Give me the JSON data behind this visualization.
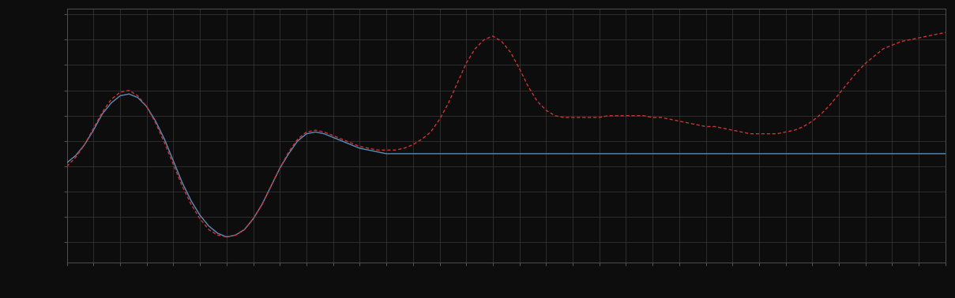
{
  "background_color": "#0d0d0d",
  "plot_bg_color": "#0d0d0d",
  "grid_color": "#3a3a3a",
  "line1_color": "#5b8db8",
  "line2_color": "#cc3333",
  "figsize": [
    12.09,
    3.78
  ],
  "dpi": 100,
  "x": [
    0,
    1,
    2,
    3,
    4,
    5,
    6,
    7,
    8,
    9,
    10,
    11,
    12,
    13,
    14,
    15,
    16,
    17,
    18,
    19,
    20,
    21,
    22,
    23,
    24,
    25,
    26,
    27,
    28,
    29,
    30,
    31,
    32,
    33,
    34,
    35,
    36,
    37,
    38,
    39,
    40,
    41,
    42,
    43,
    44,
    45,
    46,
    47,
    48,
    49,
    50,
    51,
    52,
    53,
    54,
    55,
    56,
    57,
    58,
    59,
    60,
    61,
    62,
    63,
    64,
    65,
    66,
    67,
    68,
    69,
    70,
    71,
    72,
    73,
    74,
    75,
    76,
    77,
    78,
    79,
    80,
    81,
    82,
    83,
    84,
    85,
    86,
    87,
    88,
    89,
    90,
    91,
    92,
    93,
    94,
    95,
    96,
    97,
    98,
    99
  ],
  "y_blue": [
    0.3,
    0.34,
    0.4,
    0.48,
    0.57,
    0.63,
    0.67,
    0.68,
    0.66,
    0.61,
    0.53,
    0.43,
    0.31,
    0.19,
    0.09,
    0.01,
    -0.05,
    -0.09,
    -0.11,
    -0.1,
    -0.07,
    -0.01,
    0.07,
    0.17,
    0.27,
    0.35,
    0.42,
    0.46,
    0.47,
    0.46,
    0.44,
    0.42,
    0.4,
    0.38,
    0.37,
    0.36,
    0.35,
    0.35,
    0.35,
    0.35,
    0.35,
    0.35,
    0.35,
    0.35,
    0.35,
    0.35,
    0.35,
    0.35,
    0.35,
    0.35,
    0.35,
    0.35,
    0.35,
    0.35,
    0.35,
    0.35,
    0.35,
    0.35,
    0.35,
    0.35,
    0.35,
    0.35,
    0.35,
    0.35,
    0.35,
    0.35,
    0.35,
    0.35,
    0.35,
    0.35,
    0.35,
    0.35,
    0.35,
    0.35,
    0.35,
    0.35,
    0.35,
    0.35,
    0.35,
    0.35,
    0.35,
    0.35,
    0.35,
    0.35,
    0.35,
    0.35,
    0.35,
    0.35,
    0.35,
    0.35,
    0.35,
    0.35,
    0.35,
    0.35,
    0.35,
    0.35,
    0.35,
    0.35,
    0.35,
    0.35
  ],
  "y_red": [
    0.28,
    0.33,
    0.4,
    0.49,
    0.58,
    0.65,
    0.69,
    0.7,
    0.67,
    0.61,
    0.52,
    0.41,
    0.29,
    0.17,
    0.07,
    -0.01,
    -0.07,
    -0.1,
    -0.11,
    -0.1,
    -0.07,
    -0.01,
    0.07,
    0.17,
    0.27,
    0.36,
    0.43,
    0.47,
    0.48,
    0.47,
    0.45,
    0.43,
    0.41,
    0.39,
    0.38,
    0.37,
    0.37,
    0.37,
    0.38,
    0.4,
    0.43,
    0.47,
    0.54,
    0.63,
    0.74,
    0.85,
    0.93,
    0.98,
    1.0,
    0.97,
    0.91,
    0.82,
    0.72,
    0.64,
    0.59,
    0.56,
    0.55,
    0.55,
    0.55,
    0.55,
    0.55,
    0.56,
    0.56,
    0.56,
    0.56,
    0.56,
    0.55,
    0.55,
    0.54,
    0.53,
    0.52,
    0.51,
    0.5,
    0.5,
    0.49,
    0.48,
    0.47,
    0.46,
    0.46,
    0.46,
    0.46,
    0.47,
    0.48,
    0.5,
    0.53,
    0.57,
    0.62,
    0.68,
    0.74,
    0.8,
    0.85,
    0.89,
    0.93,
    0.95,
    0.97,
    0.98,
    0.99,
    1.0,
    1.01,
    1.02
  ],
  "ylim": [
    -0.25,
    1.15
  ],
  "xlim": [
    0,
    99
  ],
  "xtick_spacing": 3,
  "ytick_count": 10,
  "spine_color": "#505050"
}
